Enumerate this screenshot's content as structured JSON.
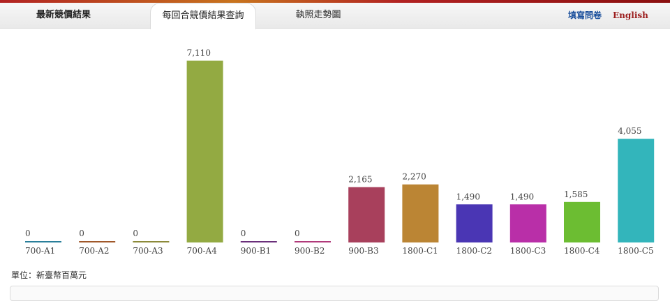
{
  "nav": {
    "tab_latest": "最新競價結果",
    "tab_query": "每回合競價結果查詢",
    "tab_trend": "執照走勢圖",
    "link_survey": "填寫問卷",
    "link_english": "English"
  },
  "unit_note": "單位：新臺幣百萬元",
  "chart_data": {
    "type": "bar",
    "categories": [
      "700-A1",
      "700-A2",
      "700-A3",
      "700-A4",
      "900-B1",
      "900-B2",
      "900-B3",
      "1800-C1",
      "1800-C2",
      "1800-C3",
      "1800-C4",
      "1800-C5"
    ],
    "values": [
      0,
      0,
      0,
      7110,
      0,
      0,
      2165,
      2270,
      1490,
      1490,
      1585,
      4055
    ],
    "data_labels": [
      "0",
      "0",
      "0",
      "7,110",
      "0",
      "0",
      "2,165",
      "2,270",
      "1,490",
      "1,490",
      "1,585",
      "4,055"
    ],
    "colors": [
      "#2a7f9a",
      "#a0582a",
      "#8c8a3a",
      "#93aa42",
      "#6a2f7a",
      "#b03a7a",
      "#a8405c",
      "#bb8534",
      "#4a36b4",
      "#b92fa8",
      "#6cbd32",
      "#33b5bb"
    ],
    "ylim": [
      0,
      7500
    ],
    "grid": false,
    "legend": "none"
  }
}
